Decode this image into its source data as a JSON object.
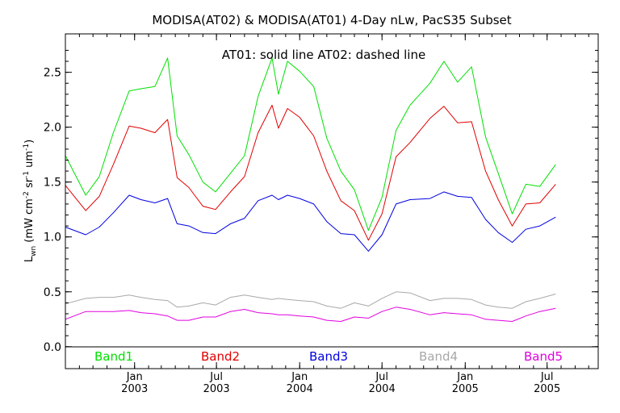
{
  "chart_data": {
    "type": "line",
    "title": "MODISA(AT02) & MODISA(AT01) 4-Day nLw, PacS35 Subset",
    "ylabel_main": "L",
    "ylabel_sub": "wn",
    "ylabel_unit": " (mW cm",
    "ylabel_sup1": "-2",
    "ylabel_mid": " sr",
    "ylabel_sup2": "-1",
    "ylabel_end": " um",
    "ylabel_sup3": "-1",
    "ylabel_close": ")",
    "annotation": "AT01: solid line   AT02: dashed line",
    "ylim": [
      -0.2,
      2.85
    ],
    "yticks": [
      {
        "value": 0.0,
        "label": "0.0"
      },
      {
        "value": 0.5,
        "label": "0.5"
      },
      {
        "value": 1.0,
        "label": "1.0"
      },
      {
        "value": 1.5,
        "label": "1.5"
      },
      {
        "value": 2.0,
        "label": "2.0"
      },
      {
        "value": 2.5,
        "label": "2.5"
      }
    ],
    "xlim": [
      "2002-08-01",
      "2005-10-22"
    ],
    "xticks": [
      {
        "date": "2003-01-01",
        "line1": "Jan",
        "line2": "2003"
      },
      {
        "date": "2003-07-01",
        "line1": "Jul",
        "line2": "2003"
      },
      {
        "date": "2004-01-01",
        "line1": "Jan",
        "line2": "2004"
      },
      {
        "date": "2004-07-01",
        "line1": "Jul",
        "line2": "2004"
      },
      {
        "date": "2005-01-01",
        "line1": "Jan",
        "line2": "2005"
      },
      {
        "date": "2005-07-01",
        "line1": "Jul",
        "line2": "2005"
      }
    ],
    "grid": false,
    "legend_placement": "bottom inside",
    "series": [
      {
        "name": "Band1",
        "color": "#00e000",
        "points": [
          [
            "2002-08-01",
            1.74
          ],
          [
            "2002-09-15",
            1.38
          ],
          [
            "2002-10-15",
            1.55
          ],
          [
            "2002-11-15",
            1.95
          ],
          [
            "2002-12-20",
            2.33
          ],
          [
            "2003-01-15",
            2.35
          ],
          [
            "2003-02-15",
            2.37
          ],
          [
            "2003-03-15",
            2.63
          ],
          [
            "2003-04-05",
            1.92
          ],
          [
            "2003-05-01",
            1.75
          ],
          [
            "2003-06-01",
            1.5
          ],
          [
            "2003-06-29",
            1.41
          ],
          [
            "2003-08-01",
            1.58
          ],
          [
            "2003-09-01",
            1.74
          ],
          [
            "2003-10-01",
            2.28
          ],
          [
            "2003-11-01",
            2.63
          ],
          [
            "2003-11-15",
            2.3
          ],
          [
            "2003-12-05",
            2.6
          ],
          [
            "2004-01-01",
            2.51
          ],
          [
            "2004-02-01",
            2.37
          ],
          [
            "2004-03-01",
            1.9
          ],
          [
            "2004-04-01",
            1.6
          ],
          [
            "2004-05-01",
            1.43
          ],
          [
            "2004-06-01",
            1.06
          ],
          [
            "2004-07-01",
            1.36
          ],
          [
            "2004-08-01",
            1.97
          ],
          [
            "2004-09-01",
            2.2
          ],
          [
            "2004-10-15",
            2.4
          ],
          [
            "2004-11-15",
            2.6
          ],
          [
            "2004-12-15",
            2.41
          ],
          [
            "2005-01-15",
            2.55
          ],
          [
            "2005-02-15",
            1.91
          ],
          [
            "2005-03-15",
            1.58
          ],
          [
            "2005-04-15",
            1.21
          ],
          [
            "2005-05-15",
            1.48
          ],
          [
            "2005-06-15",
            1.46
          ],
          [
            "2005-07-20",
            1.66
          ]
        ]
      },
      {
        "name": "Band2",
        "color": "#e00000",
        "points": [
          [
            "2002-08-01",
            1.47
          ],
          [
            "2002-09-15",
            1.24
          ],
          [
            "2002-10-15",
            1.37
          ],
          [
            "2002-11-15",
            1.66
          ],
          [
            "2002-12-20",
            2.01
          ],
          [
            "2003-01-15",
            1.99
          ],
          [
            "2003-02-15",
            1.95
          ],
          [
            "2003-03-15",
            2.07
          ],
          [
            "2003-04-05",
            1.54
          ],
          [
            "2003-05-01",
            1.45
          ],
          [
            "2003-06-01",
            1.28
          ],
          [
            "2003-06-29",
            1.25
          ],
          [
            "2003-08-01",
            1.41
          ],
          [
            "2003-09-01",
            1.55
          ],
          [
            "2003-10-01",
            1.95
          ],
          [
            "2003-11-01",
            2.2
          ],
          [
            "2003-11-15",
            1.99
          ],
          [
            "2003-12-05",
            2.17
          ],
          [
            "2004-01-01",
            2.09
          ],
          [
            "2004-02-01",
            1.92
          ],
          [
            "2004-03-01",
            1.6
          ],
          [
            "2004-04-01",
            1.33
          ],
          [
            "2004-05-01",
            1.24
          ],
          [
            "2004-06-01",
            0.97
          ],
          [
            "2004-07-01",
            1.21
          ],
          [
            "2004-08-01",
            1.73
          ],
          [
            "2004-09-01",
            1.86
          ],
          [
            "2004-10-15",
            2.08
          ],
          [
            "2004-11-15",
            2.19
          ],
          [
            "2004-12-15",
            2.04
          ],
          [
            "2005-01-15",
            2.05
          ],
          [
            "2005-02-15",
            1.6
          ],
          [
            "2005-03-15",
            1.34
          ],
          [
            "2005-04-15",
            1.1
          ],
          [
            "2005-05-15",
            1.3
          ],
          [
            "2005-06-15",
            1.31
          ],
          [
            "2005-07-20",
            1.48
          ]
        ]
      },
      {
        "name": "Band3",
        "color": "#0000e0",
        "points": [
          [
            "2002-08-01",
            1.09
          ],
          [
            "2002-09-15",
            1.02
          ],
          [
            "2002-10-15",
            1.09
          ],
          [
            "2002-11-15",
            1.22
          ],
          [
            "2002-12-20",
            1.38
          ],
          [
            "2003-01-15",
            1.34
          ],
          [
            "2003-02-15",
            1.31
          ],
          [
            "2003-03-15",
            1.35
          ],
          [
            "2003-04-05",
            1.12
          ],
          [
            "2003-05-01",
            1.1
          ],
          [
            "2003-06-01",
            1.04
          ],
          [
            "2003-06-29",
            1.03
          ],
          [
            "2003-08-01",
            1.12
          ],
          [
            "2003-09-01",
            1.17
          ],
          [
            "2003-10-01",
            1.33
          ],
          [
            "2003-11-01",
            1.38
          ],
          [
            "2003-11-15",
            1.34
          ],
          [
            "2003-12-05",
            1.38
          ],
          [
            "2004-01-01",
            1.35
          ],
          [
            "2004-02-01",
            1.3
          ],
          [
            "2004-03-01",
            1.14
          ],
          [
            "2004-04-01",
            1.03
          ],
          [
            "2004-05-01",
            1.02
          ],
          [
            "2004-06-01",
            0.87
          ],
          [
            "2004-07-01",
            1.02
          ],
          [
            "2004-08-01",
            1.3
          ],
          [
            "2004-09-01",
            1.34
          ],
          [
            "2004-10-15",
            1.35
          ],
          [
            "2004-11-15",
            1.41
          ],
          [
            "2004-12-15",
            1.37
          ],
          [
            "2005-01-15",
            1.36
          ],
          [
            "2005-02-15",
            1.16
          ],
          [
            "2005-03-15",
            1.04
          ],
          [
            "2005-04-15",
            0.95
          ],
          [
            "2005-05-15",
            1.07
          ],
          [
            "2005-06-15",
            1.1
          ],
          [
            "2005-07-20",
            1.18
          ]
        ]
      },
      {
        "name": "Band4",
        "color": "#a8a8a8",
        "points": [
          [
            "2002-08-01",
            0.39
          ],
          [
            "2002-09-15",
            0.44
          ],
          [
            "2002-10-15",
            0.45
          ],
          [
            "2002-11-15",
            0.45
          ],
          [
            "2002-12-20",
            0.47
          ],
          [
            "2003-01-15",
            0.45
          ],
          [
            "2003-02-15",
            0.43
          ],
          [
            "2003-03-15",
            0.42
          ],
          [
            "2003-04-05",
            0.36
          ],
          [
            "2003-05-01",
            0.37
          ],
          [
            "2003-06-01",
            0.4
          ],
          [
            "2003-06-29",
            0.38
          ],
          [
            "2003-08-01",
            0.45
          ],
          [
            "2003-09-01",
            0.47
          ],
          [
            "2003-10-01",
            0.45
          ],
          [
            "2003-11-01",
            0.43
          ],
          [
            "2003-11-15",
            0.44
          ],
          [
            "2003-12-05",
            0.43
          ],
          [
            "2004-01-01",
            0.42
          ],
          [
            "2004-02-01",
            0.41
          ],
          [
            "2004-03-01",
            0.37
          ],
          [
            "2004-04-01",
            0.35
          ],
          [
            "2004-05-01",
            0.4
          ],
          [
            "2004-06-01",
            0.37
          ],
          [
            "2004-07-01",
            0.44
          ],
          [
            "2004-08-01",
            0.5
          ],
          [
            "2004-09-01",
            0.49
          ],
          [
            "2004-10-15",
            0.42
          ],
          [
            "2004-11-15",
            0.44
          ],
          [
            "2004-12-15",
            0.44
          ],
          [
            "2005-01-15",
            0.43
          ],
          [
            "2005-02-15",
            0.38
          ],
          [
            "2005-03-15",
            0.36
          ],
          [
            "2005-04-15",
            0.35
          ],
          [
            "2005-05-15",
            0.41
          ],
          [
            "2005-06-15",
            0.44
          ],
          [
            "2005-07-20",
            0.48
          ]
        ]
      },
      {
        "name": "Band5",
        "color": "#e000e0",
        "points": [
          [
            "2002-08-01",
            0.25
          ],
          [
            "2002-09-15",
            0.32
          ],
          [
            "2002-10-15",
            0.32
          ],
          [
            "2002-11-15",
            0.32
          ],
          [
            "2002-12-20",
            0.33
          ],
          [
            "2003-01-15",
            0.31
          ],
          [
            "2003-02-15",
            0.3
          ],
          [
            "2003-03-15",
            0.28
          ],
          [
            "2003-04-05",
            0.24
          ],
          [
            "2003-05-01",
            0.24
          ],
          [
            "2003-06-01",
            0.27
          ],
          [
            "2003-06-29",
            0.27
          ],
          [
            "2003-08-01",
            0.32
          ],
          [
            "2003-09-01",
            0.34
          ],
          [
            "2003-10-01",
            0.31
          ],
          [
            "2003-11-01",
            0.3
          ],
          [
            "2003-11-15",
            0.29
          ],
          [
            "2003-12-05",
            0.29
          ],
          [
            "2004-01-01",
            0.28
          ],
          [
            "2004-02-01",
            0.27
          ],
          [
            "2004-03-01",
            0.24
          ],
          [
            "2004-04-01",
            0.23
          ],
          [
            "2004-05-01",
            0.27
          ],
          [
            "2004-06-01",
            0.26
          ],
          [
            "2004-07-01",
            0.32
          ],
          [
            "2004-08-01",
            0.36
          ],
          [
            "2004-09-01",
            0.34
          ],
          [
            "2004-10-15",
            0.29
          ],
          [
            "2004-11-15",
            0.31
          ],
          [
            "2004-12-15",
            0.3
          ],
          [
            "2005-01-15",
            0.29
          ],
          [
            "2005-02-15",
            0.25
          ],
          [
            "2005-03-15",
            0.24
          ],
          [
            "2005-04-15",
            0.23
          ],
          [
            "2005-05-15",
            0.28
          ],
          [
            "2005-06-15",
            0.32
          ],
          [
            "2005-07-20",
            0.35
          ]
        ]
      }
    ]
  }
}
